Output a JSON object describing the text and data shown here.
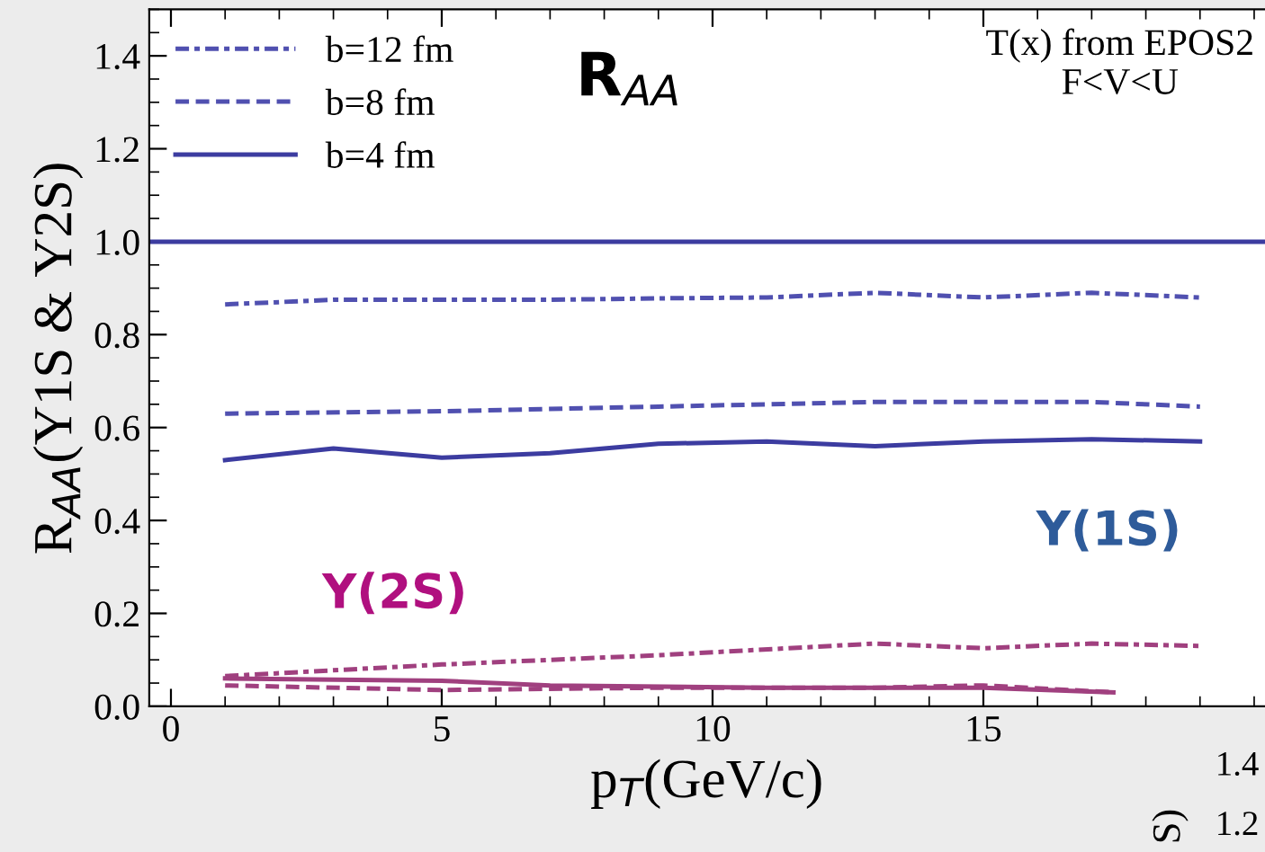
{
  "chart_data": {
    "type": "line",
    "title": "R$_{AA}$",
    "xlabel": "p$_{T}$(GeV/c)",
    "ylabel": "R$_{AA}$(Y1S & Y2S)",
    "xlim": [
      -0.4,
      20.2
    ],
    "ylim": [
      0,
      1.5
    ],
    "xticks": [
      0,
      5,
      10,
      15
    ],
    "yticks": [
      {
        "value": 0,
        "label": "0.0"
      },
      0.2,
      0.4,
      0.6,
      0.8,
      {
        "value": 1,
        "label": "1.0"
      },
      1.2,
      1.4
    ],
    "grid": false,
    "legend": "top left",
    "marker": "none",
    "ref_lines": [
      {
        "axis": "y",
        "value": 1.0,
        "color": "#3c3ca0",
        "line_style": "solid"
      }
    ],
    "series": [
      {
        "name": "b=12 fm",
        "color": "#5050b0",
        "line_style": "dashdot",
        "x": [
          1,
          3,
          5,
          7,
          9,
          11,
          13,
          15,
          17,
          19
        ],
        "values": [
          0.865,
          0.875,
          0.875,
          0.875,
          0.878,
          0.88,
          0.89,
          0.88,
          0.89,
          0.88
        ]
      },
      {
        "name": "b=8 fm",
        "color": "#5050b0",
        "line_style": "dashed",
        "x": [
          1,
          5,
          9,
          13,
          17,
          19
        ],
        "values": [
          0.63,
          0.635,
          0.645,
          0.655,
          0.655,
          0.645
        ]
      },
      {
        "name": "b=4 fm",
        "color": "#3c3ca0",
        "line_style": "solid",
        "x": [
          1,
          3,
          5,
          7,
          9,
          11,
          13,
          15,
          17,
          19
        ],
        "values": [
          0.53,
          0.555,
          0.535,
          0.545,
          0.565,
          0.57,
          0.56,
          0.57,
          0.575,
          0.57
        ]
      },
      {
        "color": "#a0407f",
        "line_style": "dashdot",
        "x": [
          1,
          5,
          9,
          13,
          15,
          17,
          19
        ],
        "values": [
          0.065,
          0.09,
          0.11,
          0.135,
          0.125,
          0.135,
          0.13
        ]
      },
      {
        "color": "#a0407f",
        "line_style": "solid",
        "x": [
          1,
          5,
          7,
          11,
          15,
          17.4
        ],
        "values": [
          0.06,
          0.055,
          0.045,
          0.04,
          0.04,
          0.03
        ]
      },
      {
        "color": "#a0407f",
        "line_style": "dashed",
        "x": [
          1,
          5,
          9,
          13,
          15,
          17.4
        ],
        "values": [
          0.045,
          0.035,
          0.04,
          0.04,
          0.045,
          0.03
        ]
      }
    ],
    "annotations": [
      "Y(1S)",
      "Y(2S)",
      "T(x) from EPOS2\nF<V<U",
      "1.4",
      "1.2",
      "S)"
    ]
  }
}
